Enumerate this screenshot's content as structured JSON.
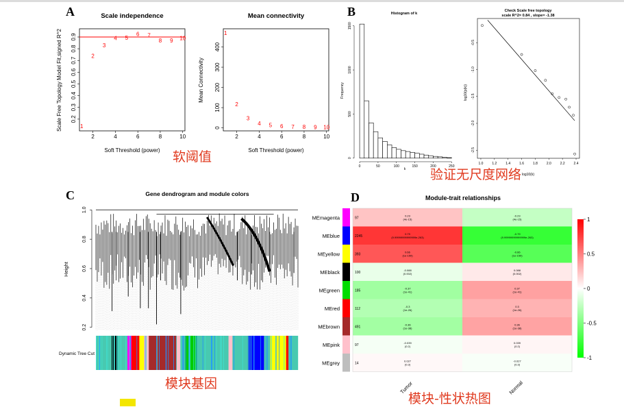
{
  "panels": {
    "a": "A",
    "b": "B",
    "c": "C",
    "d": "D"
  },
  "notes": {
    "soft_threshold": "软阈值",
    "scale_free": "验证无尺度网络",
    "module_genes": "模块基因",
    "module_trait": "模块-性状热图"
  },
  "colors": {
    "red": "#ff0000",
    "annotation": "#e03a1f",
    "highlight": "#f3e600"
  },
  "chart_data": [
    {
      "id": "scale-independence",
      "type": "scatter",
      "title": "Scale independence",
      "xlabel": "Soft Threshold (power)",
      "ylabel": "Scale Free Topology Model Fit,signed R^2",
      "x": [
        1,
        2,
        3,
        4,
        5,
        6,
        7,
        8,
        9,
        10
      ],
      "y": [
        0.14,
        0.74,
        0.83,
        0.89,
        0.895,
        0.925,
        0.915,
        0.87,
        0.87,
        0.89
      ],
      "labels": [
        "1",
        "2",
        "3",
        "4",
        "5",
        "6",
        "7",
        "8",
        "9",
        "10"
      ],
      "hline": 0.9,
      "xlim": [
        0.8,
        10.2
      ],
      "ylim": [
        0.1,
        0.97
      ],
      "xticks": [
        2,
        4,
        6,
        8,
        10
      ],
      "yticks": [
        0.2,
        0.3,
        0.4,
        0.5,
        0.6,
        0.7,
        0.8,
        0.9
      ]
    },
    {
      "id": "mean-connectivity",
      "type": "scatter",
      "title": "Mean connectivity",
      "xlabel": "Soft Threshold (power)",
      "ylabel": "Mean Connectivity",
      "x": [
        1,
        2,
        3,
        4,
        5,
        6,
        7,
        8,
        9,
        10
      ],
      "y": [
        470,
        118,
        47,
        22,
        13,
        8,
        6,
        5,
        4,
        3
      ],
      "labels": [
        "1",
        "2",
        "3",
        "4",
        "5",
        "6",
        "7",
        "8",
        "9",
        "10"
      ],
      "xlim": [
        0.8,
        10.2
      ],
      "ylim": [
        -15,
        490
      ],
      "xticks": [
        2,
        4,
        6,
        8,
        10
      ],
      "yticks": [
        0,
        100,
        200,
        300,
        400
      ]
    },
    {
      "id": "histogram-k",
      "type": "bar",
      "title": "Histogram of k",
      "xlabel": "k",
      "ylabel": "Frequency",
      "bin_width": 12.5,
      "bins": [
        0,
        12.5,
        25,
        37.5,
        50,
        62.5,
        75,
        87.5,
        100,
        112.5,
        125,
        137.5,
        150,
        162.5,
        175,
        187.5,
        200,
        212.5,
        225,
        237.5
      ],
      "values": [
        1520,
        650,
        400,
        300,
        230,
        190,
        150,
        120,
        100,
        85,
        75,
        65,
        55,
        45,
        35,
        25,
        20,
        15,
        8,
        5
      ],
      "xlim": [
        -15,
        255
      ],
      "ylim": [
        -25,
        1560
      ],
      "xticks": [
        0,
        50,
        100,
        150,
        200,
        250
      ],
      "yticks": [
        0,
        500,
        1000,
        1500
      ]
    },
    {
      "id": "scale-free-topology",
      "type": "scatter",
      "title": "Check Scale free topology",
      "subtitle": "scale R^2= 0.84 , slope= -1.38",
      "xlabel": "log10(k)",
      "ylabel": "log10(p(k))",
      "x": [
        1.02,
        1.6,
        1.8,
        1.95,
        2.05,
        2.15,
        2.25,
        2.3,
        2.36,
        2.38
      ],
      "y": [
        -0.18,
        -0.72,
        -1.02,
        -1.2,
        -1.45,
        -1.52,
        -1.55,
        -1.7,
        -1.85,
        -2.57
      ],
      "fit": {
        "x": [
          1.1,
          2.38
        ],
        "y": [
          -0.08,
          -1.95
        ]
      },
      "xlim": [
        0.95,
        2.45
      ],
      "ylim": [
        -2.65,
        -0.05
      ],
      "xticks": [
        1.0,
        1.2,
        1.4,
        1.6,
        1.8,
        2.0,
        2.2,
        2.4
      ],
      "xtick_labels": [
        "1.0",
        "1.2",
        "1.4",
        "1.6",
        "1.8",
        "2.0",
        "2.2",
        "2.4"
      ],
      "yticks": [
        -0.5,
        -1.0,
        -1.5,
        -2.0,
        -2.5
      ],
      "ytick_labels": [
        "-0.5",
        "-1.0",
        "-1.5",
        "-2.0",
        "-2.5"
      ]
    },
    {
      "id": "gene-dendrogram",
      "type": "dendrogram",
      "title": "Gene dendrogram and module colors",
      "ylabel": "Height",
      "yticks": [
        0.2,
        0.4,
        0.6,
        0.8,
        1.0
      ],
      "ylim": [
        0.18,
        1.02
      ],
      "colorbar_label": "Dynamic Tree Cut",
      "module_bar": [
        {
          "color": "#48c9b0",
          "w": 2
        },
        {
          "color": "#000000",
          "w": 0.8
        },
        {
          "color": "#48c9b0",
          "w": 1.2
        },
        {
          "color": "#ff00ff",
          "w": 0.5
        },
        {
          "color": "#ff0000",
          "w": 1
        },
        {
          "color": "#ffff00",
          "w": 0.6
        },
        {
          "color": "#ffc0cb",
          "w": 0.6
        },
        {
          "color": "#a52a2a",
          "w": 3.5
        },
        {
          "color": "#ffc0cb",
          "w": 0.5
        },
        {
          "color": "#48c9b0",
          "w": 0.6
        },
        {
          "color": "#00cc00",
          "w": 1.5
        },
        {
          "color": "#48c9b0",
          "w": 4
        },
        {
          "color": "#ffc0cb",
          "w": 0.5
        },
        {
          "color": "#48c9b0",
          "w": 2
        },
        {
          "color": "#0000ff",
          "w": 2
        },
        {
          "color": "#48c9b0",
          "w": 0.8
        },
        {
          "color": "#ffff00",
          "w": 2
        },
        {
          "color": "#ff0000",
          "w": 0.3
        },
        {
          "color": "#48c9b0",
          "w": 1.2
        }
      ],
      "spikes": [
        {
          "x": 0.08,
          "y": 0.31
        },
        {
          "x": 0.1,
          "y": 0.62
        },
        {
          "x": 0.16,
          "y": 0.41
        },
        {
          "x": 0.22,
          "y": 0.33
        },
        {
          "x": 0.26,
          "y": 0.33
        },
        {
          "x": 0.3,
          "y": 0.22
        },
        {
          "x": 0.32,
          "y": 0.52
        },
        {
          "x": 0.42,
          "y": 0.29
        },
        {
          "x": 0.7,
          "y": 0.52
        },
        {
          "x": 0.77,
          "y": 0.56
        },
        {
          "x": 0.86,
          "y": 0.63
        },
        {
          "x": 0.98,
          "y": 0.57
        }
      ]
    },
    {
      "id": "module-trait",
      "type": "heatmap",
      "title": "Module-trait relationships",
      "columns": [
        "Tumor",
        "Normal"
      ],
      "rows": [
        {
          "name": "MEmagenta",
          "color": "#ff00ff",
          "size": "97",
          "cells": [
            {
              "v": 0.23,
              "t": "0.23",
              "p": "(4e-15)"
            },
            {
              "v": -0.23,
              "t": "-0.23",
              "p": "(4e-15)"
            }
          ]
        },
        {
          "name": "MEblue",
          "color": "#0000ff",
          "size": "2245",
          "cells": [
            {
              "v": 0.79,
              "t": "0.79",
              "p": "(9.99999999999999e-263)"
            },
            {
              "v": -0.79,
              "t": "-0.79",
              "p": "(9.99999999999999e-263)"
            }
          ]
        },
        {
          "name": "MEyellow",
          "color": "#ffff00",
          "size": "393",
          "cells": [
            {
              "v": 0.66,
              "t": "0.66",
              "p": "(1e-150)"
            },
            {
              "v": -0.66,
              "t": "-0.66",
              "p": "(1e-150)"
            }
          ]
        },
        {
          "name": "MEblack",
          "color": "#000000",
          "size": "100",
          "cells": [
            {
              "v": -0.088,
              "t": "-0.088",
              "p": "(0.002)"
            },
            {
              "v": 0.088,
              "t": "0.088",
              "p": "(0.002)"
            }
          ]
        },
        {
          "name": "MEgreen",
          "color": "#00dd00",
          "size": "185",
          "cells": [
            {
              "v": -0.37,
              "t": "-0.37",
              "p": "(1e-41)"
            },
            {
              "v": 0.37,
              "t": "0.37",
              "p": "(1e-41)"
            }
          ]
        },
        {
          "name": "MEred",
          "color": "#ff0000",
          "size": "112",
          "cells": [
            {
              "v": -0.3,
              "t": "-0.3",
              "p": "(1e-26)"
            },
            {
              "v": 0.3,
              "t": "0.3",
              "p": "(1e-26)"
            }
          ]
        },
        {
          "name": "MEbrown",
          "color": "#a52a2a",
          "size": "491",
          "cells": [
            {
              "v": -0.36,
              "t": "-0.36",
              "p": "(1e-38)"
            },
            {
              "v": 0.36,
              "t": "0.36",
              "p": "(1e-38)"
            }
          ]
        },
        {
          "name": "MEpink",
          "color": "#ffc0cb",
          "size": "97",
          "cells": [
            {
              "v": -0.039,
              "t": "-0.039",
              "p": "(0.2)"
            },
            {
              "v": 0.039,
              "t": "0.039",
              "p": "(0.2)"
            }
          ]
        },
        {
          "name": "MEgrey",
          "color": "#bebebe",
          "size": "14",
          "cells": [
            {
              "v": 0.027,
              "t": "0.027",
              "p": "(0.3)"
            },
            {
              "v": -0.027,
              "t": "-0.027",
              "p": "(0.3)"
            }
          ]
        }
      ],
      "legend_ticks": [
        1,
        0.5,
        0,
        -0.5,
        -1
      ],
      "legend_labels": [
        "1",
        "0.5",
        "0",
        "-0.5",
        "-1"
      ]
    }
  ]
}
